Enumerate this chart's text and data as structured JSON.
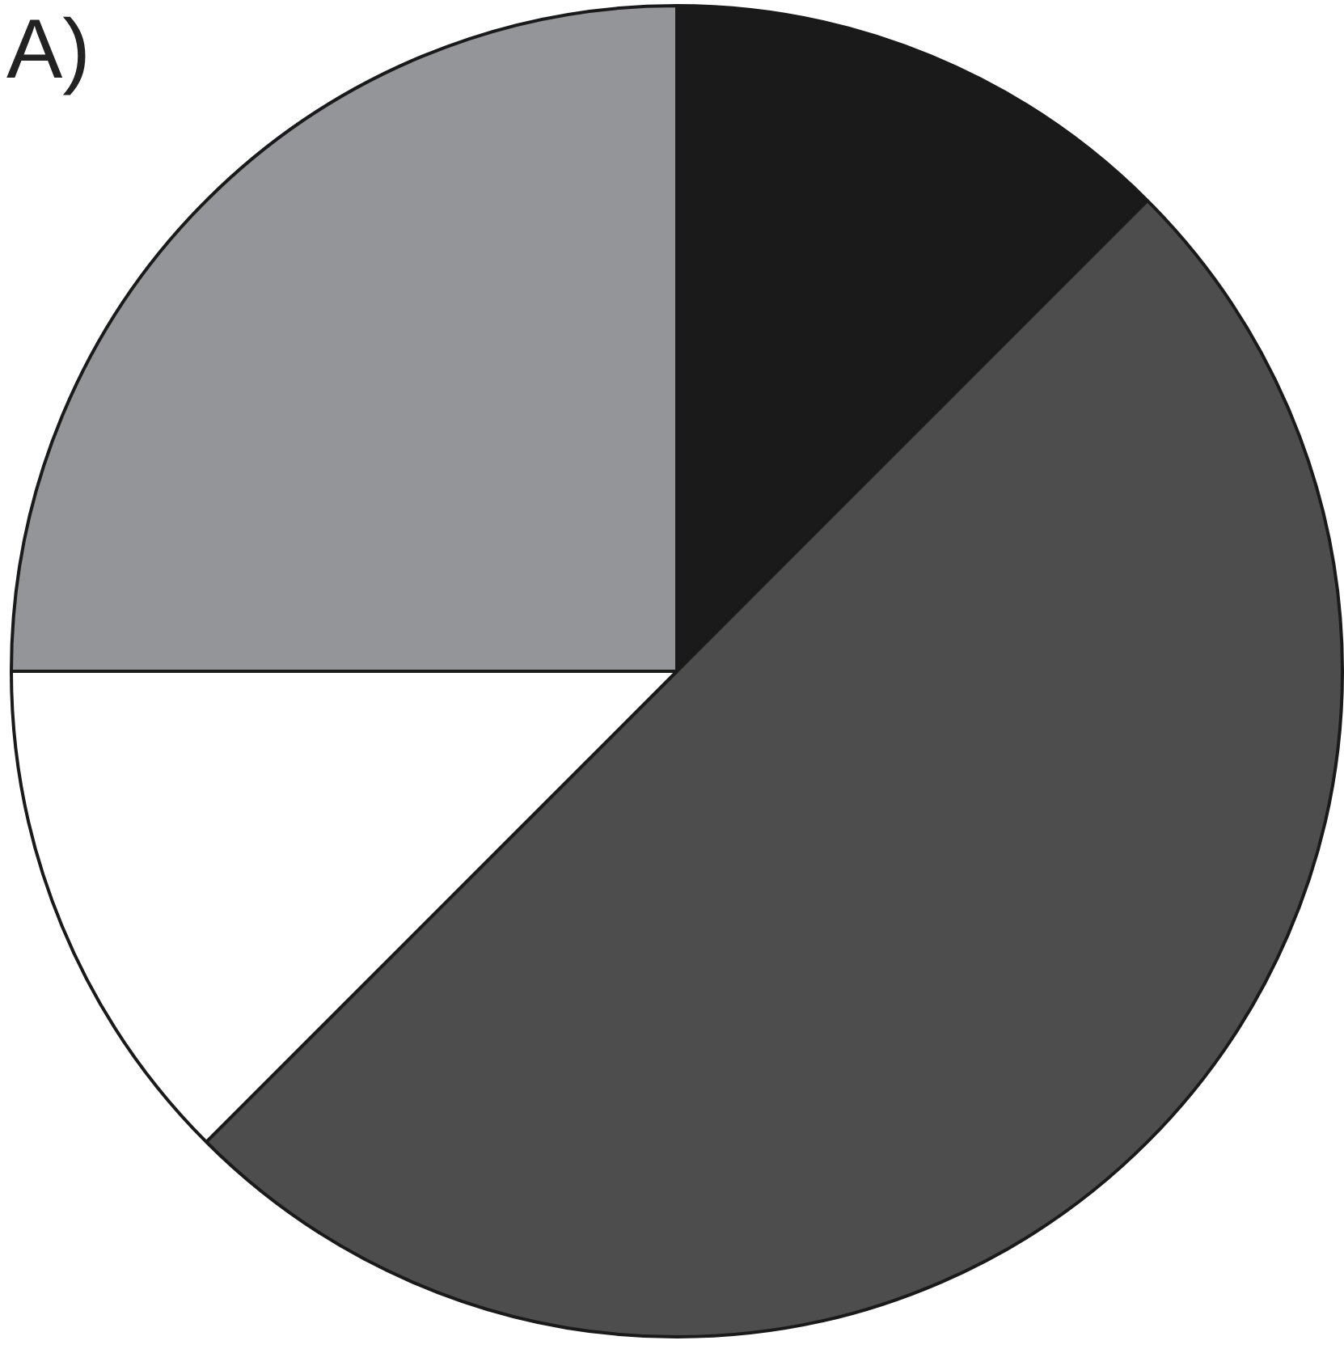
{
  "chart_data": {
    "type": "pie",
    "title": "A)",
    "categories": [
      null,
      null,
      null,
      null
    ],
    "values": [
      12.5,
      50,
      12.5,
      25
    ],
    "colors": [
      "#1a1a1a",
      "#4d4d4d",
      "#ffffff",
      "#939598"
    ],
    "legend": false
  }
}
